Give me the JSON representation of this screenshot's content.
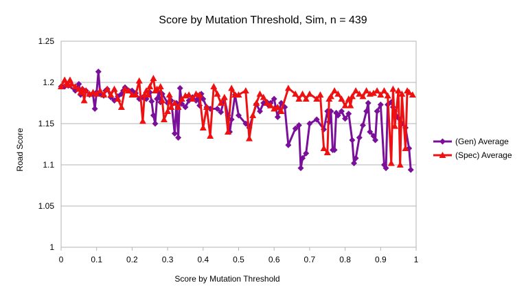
{
  "chart_data": {
    "type": "line",
    "title": "Score by Mutation Threshold, Sim, n = 439",
    "xlabel": "Score by Mutation Threshold",
    "ylabel": "Road Score",
    "xlim": [
      0,
      1
    ],
    "ylim": [
      1,
      1.25
    ],
    "x_ticks": [
      "0",
      "0.1",
      "0.2",
      "0.3",
      "0.4",
      "0.5",
      "0.6",
      "0.7",
      "0.8",
      "0.9",
      "1"
    ],
    "y_ticks": [
      "1",
      "1.05",
      "1.1",
      "1.15",
      "1.2",
      "1.25"
    ],
    "grid": "horizontal",
    "legend_position": "right",
    "series": [
      {
        "name": "(Gen) Average",
        "color": "#7a0f99",
        "marker": "diamond",
        "x": [
          0.0,
          0.01,
          0.02,
          0.04,
          0.05,
          0.055,
          0.06,
          0.07,
          0.08,
          0.09,
          0.095,
          0.1,
          0.105,
          0.11,
          0.12,
          0.125,
          0.13,
          0.14,
          0.15,
          0.16,
          0.17,
          0.175,
          0.18,
          0.2,
          0.21,
          0.22,
          0.23,
          0.24,
          0.25,
          0.255,
          0.26,
          0.265,
          0.27,
          0.275,
          0.28,
          0.285,
          0.3,
          0.31,
          0.32,
          0.325,
          0.33,
          0.335,
          0.34,
          0.35,
          0.36,
          0.37,
          0.38,
          0.385,
          0.39,
          0.395,
          0.4,
          0.41,
          0.42,
          0.44,
          0.45,
          0.46,
          0.47,
          0.475,
          0.48,
          0.49,
          0.5,
          0.52,
          0.53,
          0.55,
          0.56,
          0.57,
          0.58,
          0.585,
          0.59,
          0.6,
          0.61,
          0.62,
          0.63,
          0.64,
          0.66,
          0.67,
          0.675,
          0.68,
          0.69,
          0.7,
          0.72,
          0.74,
          0.75,
          0.755,
          0.76,
          0.765,
          0.77,
          0.775,
          0.78,
          0.79,
          0.8,
          0.81,
          0.82,
          0.825,
          0.83,
          0.84,
          0.85,
          0.86,
          0.865,
          0.87,
          0.88,
          0.885,
          0.89,
          0.9,
          0.91,
          0.915,
          0.92,
          0.93,
          0.935,
          0.94,
          0.95,
          0.96,
          0.97,
          0.98,
          0.985
        ],
        "y": [
          1.195,
          1.195,
          1.196,
          1.19,
          1.198,
          1.185,
          1.192,
          1.19,
          1.185,
          1.185,
          1.168,
          1.188,
          1.213,
          1.186,
          1.184,
          1.19,
          1.192,
          1.182,
          1.178,
          1.183,
          1.186,
          1.19,
          1.194,
          1.19,
          1.187,
          1.18,
          1.182,
          1.18,
          1.188,
          1.177,
          1.16,
          1.15,
          1.18,
          1.188,
          1.176,
          1.186,
          1.175,
          1.178,
          1.138,
          1.175,
          1.133,
          1.193,
          1.174,
          1.17,
          1.178,
          1.182,
          1.178,
          1.184,
          1.172,
          1.186,
          1.18,
          1.17,
          1.168,
          1.168,
          1.164,
          1.18,
          1.16,
          1.14,
          1.155,
          1.185,
          1.16,
          1.15,
          1.145,
          1.174,
          1.165,
          1.175,
          1.176,
          1.172,
          1.175,
          1.18,
          1.158,
          1.175,
          1.17,
          1.124,
          1.144,
          1.148,
          1.096,
          1.108,
          1.114,
          1.15,
          1.155,
          1.143,
          1.165,
          1.152,
          1.165,
          1.118,
          1.118,
          1.163,
          1.16,
          1.165,
          1.156,
          1.162,
          1.13,
          1.102,
          1.108,
          1.133,
          1.148,
          1.165,
          1.175,
          1.14,
          1.135,
          1.13,
          1.165,
          1.173,
          1.1,
          1.096,
          1.173,
          1.176,
          1.17,
          1.165,
          1.157,
          1.15,
          1.145,
          1.12,
          1.094
        ]
      },
      {
        "name": "(Spec) Average",
        "color": "#ee1111",
        "marker": "triangle",
        "x": [
          0.0,
          0.01,
          0.015,
          0.02,
          0.025,
          0.03,
          0.04,
          0.05,
          0.055,
          0.06,
          0.065,
          0.07,
          0.08,
          0.09,
          0.1,
          0.11,
          0.12,
          0.13,
          0.14,
          0.15,
          0.16,
          0.17,
          0.18,
          0.19,
          0.2,
          0.21,
          0.22,
          0.23,
          0.235,
          0.24,
          0.245,
          0.25,
          0.26,
          0.265,
          0.27,
          0.28,
          0.285,
          0.29,
          0.3,
          0.305,
          0.31,
          0.32,
          0.33,
          0.34,
          0.35,
          0.36,
          0.37,
          0.38,
          0.39,
          0.4,
          0.41,
          0.42,
          0.43,
          0.44,
          0.45,
          0.46,
          0.47,
          0.48,
          0.49,
          0.5,
          0.52,
          0.53,
          0.54,
          0.55,
          0.56,
          0.57,
          0.58,
          0.59,
          0.6,
          0.61,
          0.62,
          0.64,
          0.66,
          0.67,
          0.68,
          0.69,
          0.7,
          0.72,
          0.73,
          0.74,
          0.75,
          0.755,
          0.76,
          0.77,
          0.78,
          0.79,
          0.8,
          0.81,
          0.815,
          0.82,
          0.83,
          0.84,
          0.85,
          0.86,
          0.87,
          0.88,
          0.89,
          0.9,
          0.91,
          0.92,
          0.93,
          0.935,
          0.94,
          0.95,
          0.955,
          0.96,
          0.97,
          0.975,
          0.98,
          0.99
        ],
        "y": [
          1.195,
          1.203,
          1.198,
          1.197,
          1.203,
          1.198,
          1.195,
          1.192,
          1.188,
          1.192,
          1.178,
          1.19,
          1.186,
          1.188,
          1.186,
          1.19,
          1.185,
          1.192,
          1.185,
          1.192,
          1.18,
          1.17,
          1.192,
          1.19,
          1.185,
          1.185,
          1.202,
          1.153,
          1.185,
          1.19,
          1.185,
          1.195,
          1.205,
          1.19,
          1.192,
          1.195,
          1.178,
          1.155,
          1.165,
          1.185,
          1.17,
          1.175,
          1.17,
          1.18,
          1.184,
          1.185,
          1.18,
          1.186,
          1.185,
          1.145,
          1.17,
          1.135,
          1.195,
          1.186,
          1.175,
          1.182,
          1.14,
          1.193,
          1.185,
          1.185,
          1.19,
          1.132,
          1.16,
          1.175,
          1.186,
          1.182,
          1.175,
          1.172,
          1.168,
          1.17,
          1.165,
          1.193,
          1.186,
          1.18,
          1.186,
          1.18,
          1.186,
          1.18,
          1.185,
          1.12,
          1.115,
          1.18,
          1.183,
          1.19,
          1.186,
          1.18,
          1.172,
          1.18,
          1.172,
          1.183,
          1.19,
          1.186,
          1.183,
          1.19,
          1.186,
          1.187,
          1.19,
          1.185,
          1.19,
          1.184,
          1.102,
          1.192,
          1.147,
          1.19,
          1.1,
          1.186,
          1.12,
          1.19,
          1.188,
          1.185
        ]
      }
    ]
  }
}
